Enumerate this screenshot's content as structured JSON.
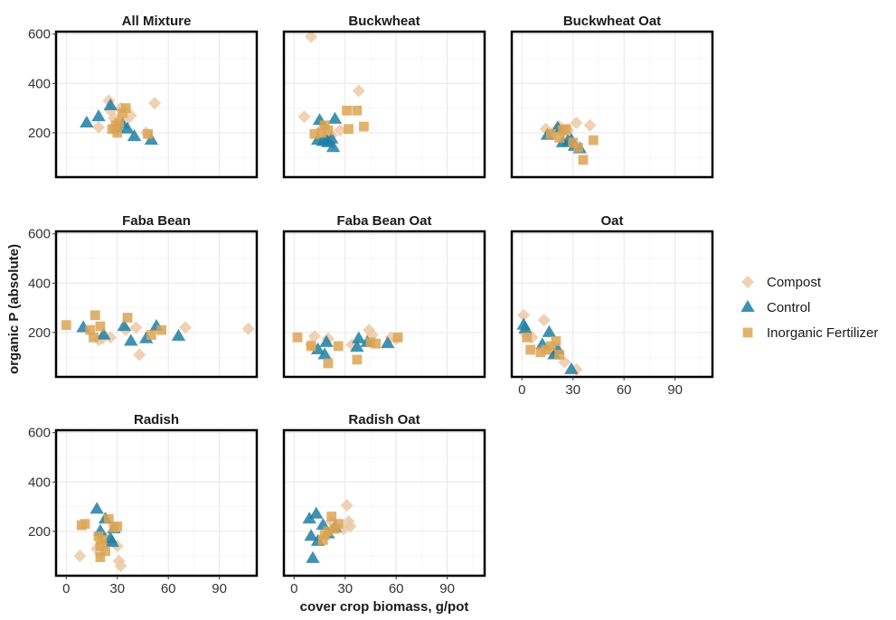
{
  "chart_data": {
    "type": "scatter",
    "xlabel": "cover crop biomass, g/pot",
    "ylabel": "organic P (absolute)",
    "xlim": [
      -6,
      112
    ],
    "ylim": [
      20,
      610
    ],
    "xticks": [
      0,
      30,
      60,
      90
    ],
    "yticks": [
      200,
      400,
      600
    ],
    "grid": true,
    "legend_position": "right",
    "colors": {
      "Compost": "#ecc9a6",
      "Control": "#1f7fa3",
      "Inorganic Fertilizer": "#dca554"
    },
    "series": [
      {
        "name": "Compost",
        "marker": "diamond"
      },
      {
        "name": "Control",
        "marker": "triangle"
      },
      {
        "name": "Inorganic Fertilizer",
        "marker": "square"
      }
    ],
    "panels": [
      {
        "title": "All Mixture",
        "points": {
          "Compost": [
            [
              19,
              222
            ],
            [
              25,
              330
            ],
            [
              26,
              290
            ],
            [
              28,
              260
            ],
            [
              30,
              210
            ],
            [
              32,
              300
            ],
            [
              35,
              250
            ],
            [
              38,
              270
            ],
            [
              47,
              200
            ],
            [
              52,
              320
            ]
          ],
          "Control": [
            [
              12,
              240
            ],
            [
              19,
              265
            ],
            [
              26,
              310
            ],
            [
              30,
              220
            ],
            [
              33,
              235
            ],
            [
              36,
              215
            ],
            [
              40,
              185
            ],
            [
              50,
              170
            ]
          ],
          "Inorganic Fertilizer": [
            [
              27,
              215
            ],
            [
              29,
              230
            ],
            [
              30,
              200
            ],
            [
              31,
              240
            ],
            [
              33,
              280
            ],
            [
              35,
              300
            ],
            [
              48,
              195
            ]
          ]
        }
      },
      {
        "title": "Buckwheat",
        "points": {
          "Compost": [
            [
              6,
              265
            ],
            [
              10,
              590
            ],
            [
              17,
              220
            ],
            [
              22,
              190
            ],
            [
              27,
              210
            ],
            [
              38,
              370
            ]
          ],
          "Control": [
            [
              14,
              170
            ],
            [
              15,
              250
            ],
            [
              17,
              165
            ],
            [
              19,
              170
            ],
            [
              20,
              160
            ],
            [
              22,
              175
            ],
            [
              23,
              140
            ],
            [
              24,
              255
            ]
          ],
          "Inorganic Fertilizer": [
            [
              12,
              195
            ],
            [
              16,
              200
            ],
            [
              18,
              230
            ],
            [
              20,
              210
            ],
            [
              31,
              290
            ],
            [
              32,
              215
            ],
            [
              37,
              290
            ],
            [
              41,
              225
            ]
          ]
        }
      },
      {
        "title": "Buckwheat Oat",
        "points": {
          "Compost": [
            [
              14,
              215
            ],
            [
              18,
              200
            ],
            [
              22,
              225
            ],
            [
              25,
              195
            ],
            [
              27,
              210
            ],
            [
              32,
              240
            ],
            [
              40,
              230
            ]
          ],
          "Control": [
            [
              15,
              190
            ],
            [
              21,
              220
            ],
            [
              24,
              160
            ],
            [
              27,
              165
            ],
            [
              29,
              170
            ],
            [
              31,
              145
            ],
            [
              34,
              135
            ]
          ],
          "Inorganic Fertilizer": [
            [
              17,
              195
            ],
            [
              22,
              180
            ],
            [
              24,
              210
            ],
            [
              26,
              215
            ],
            [
              30,
              160
            ],
            [
              33,
              140
            ],
            [
              36,
              90
            ],
            [
              42,
              170
            ]
          ]
        }
      },
      {
        "title": "Faba Bean",
        "points": {
          "Compost": [
            [
              19,
              170
            ],
            [
              21,
              175
            ],
            [
              26,
              180
            ],
            [
              35,
              210
            ],
            [
              41,
              220
            ],
            [
              43,
              110
            ],
            [
              70,
              220
            ],
            [
              107,
              215
            ]
          ],
          "Control": [
            [
              10,
              220
            ],
            [
              22,
              190
            ],
            [
              34,
              225
            ],
            [
              38,
              165
            ],
            [
              47,
              175
            ],
            [
              53,
              225
            ],
            [
              66,
              185
            ]
          ],
          "Inorganic Fertilizer": [
            [
              0,
              230
            ],
            [
              14,
              210
            ],
            [
              16,
              180
            ],
            [
              17,
              270
            ],
            [
              20,
              225
            ],
            [
              36,
              260
            ],
            [
              50,
              190
            ],
            [
              56,
              210
            ]
          ]
        }
      },
      {
        "title": "Faba Bean Oat",
        "points": {
          "Compost": [
            [
              10,
              150
            ],
            [
              12,
              185
            ],
            [
              20,
              175
            ],
            [
              34,
              150
            ],
            [
              44,
              210
            ],
            [
              46,
              190
            ],
            [
              57,
              180
            ],
            [
              60,
              175
            ]
          ],
          "Control": [
            [
              14,
              130
            ],
            [
              18,
              110
            ],
            [
              19,
              160
            ],
            [
              37,
              140
            ],
            [
              38,
              175
            ],
            [
              43,
              160
            ],
            [
              55,
              155
            ]
          ],
          "Inorganic Fertilizer": [
            [
              2,
              180
            ],
            [
              10,
              145
            ],
            [
              20,
              75
            ],
            [
              26,
              145
            ],
            [
              37,
              90
            ],
            [
              45,
              160
            ],
            [
              48,
              155
            ],
            [
              61,
              180
            ]
          ]
        }
      },
      {
        "title": "Oat",
        "points": {
          "Compost": [
            [
              1,
              270
            ],
            [
              2,
              195
            ],
            [
              6,
              180
            ],
            [
              13,
              250
            ],
            [
              18,
              120
            ],
            [
              25,
              80
            ],
            [
              32,
              50
            ]
          ],
          "Control": [
            [
              1,
              230
            ],
            [
              2,
              215
            ],
            [
              12,
              150
            ],
            [
              16,
              200
            ],
            [
              19,
              110
            ],
            [
              21,
              130
            ],
            [
              29,
              50
            ]
          ],
          "Inorganic Fertilizer": [
            [
              3,
              180
            ],
            [
              5,
              130
            ],
            [
              11,
              120
            ],
            [
              14,
              130
            ],
            [
              17,
              145
            ],
            [
              20,
              165
            ],
            [
              22,
              110
            ]
          ]
        }
      },
      {
        "title": "Radish",
        "points": {
          "Compost": [
            [
              8,
              100
            ],
            [
              18,
              130
            ],
            [
              20,
              110
            ],
            [
              22,
              180
            ],
            [
              24,
              150
            ],
            [
              30,
              140
            ],
            [
              31,
              80
            ],
            [
              32,
              60
            ]
          ],
          "Control": [
            [
              18,
              290
            ],
            [
              20,
              200
            ],
            [
              23,
              250
            ],
            [
              26,
              170
            ],
            [
              27,
              155
            ],
            [
              28,
              210
            ]
          ],
          "Inorganic Fertilizer": [
            [
              9,
              225
            ],
            [
              11,
              230
            ],
            [
              19,
              180
            ],
            [
              20,
              140
            ],
            [
              20,
              95
            ],
            [
              21,
              165
            ],
            [
              23,
              120
            ],
            [
              25,
              250
            ],
            [
              28,
              215
            ],
            [
              30,
              220
            ]
          ]
        }
      },
      {
        "title": "Radish Oat",
        "points": {
          "Compost": [
            [
              22,
              240
            ],
            [
              29,
              210
            ],
            [
              31,
              305
            ],
            [
              32,
              240
            ],
            [
              33,
              220
            ]
          ],
          "Control": [
            [
              9,
              250
            ],
            [
              10,
              180
            ],
            [
              11,
              90
            ],
            [
              13,
              270
            ],
            [
              14,
              160
            ],
            [
              17,
              225
            ],
            [
              20,
              190
            ],
            [
              24,
              215
            ]
          ],
          "Inorganic Fertilizer": [
            [
              17,
              165
            ],
            [
              18,
              185
            ],
            [
              20,
              200
            ],
            [
              22,
              260
            ],
            [
              24,
              210
            ],
            [
              26,
              230
            ]
          ]
        }
      }
    ]
  }
}
